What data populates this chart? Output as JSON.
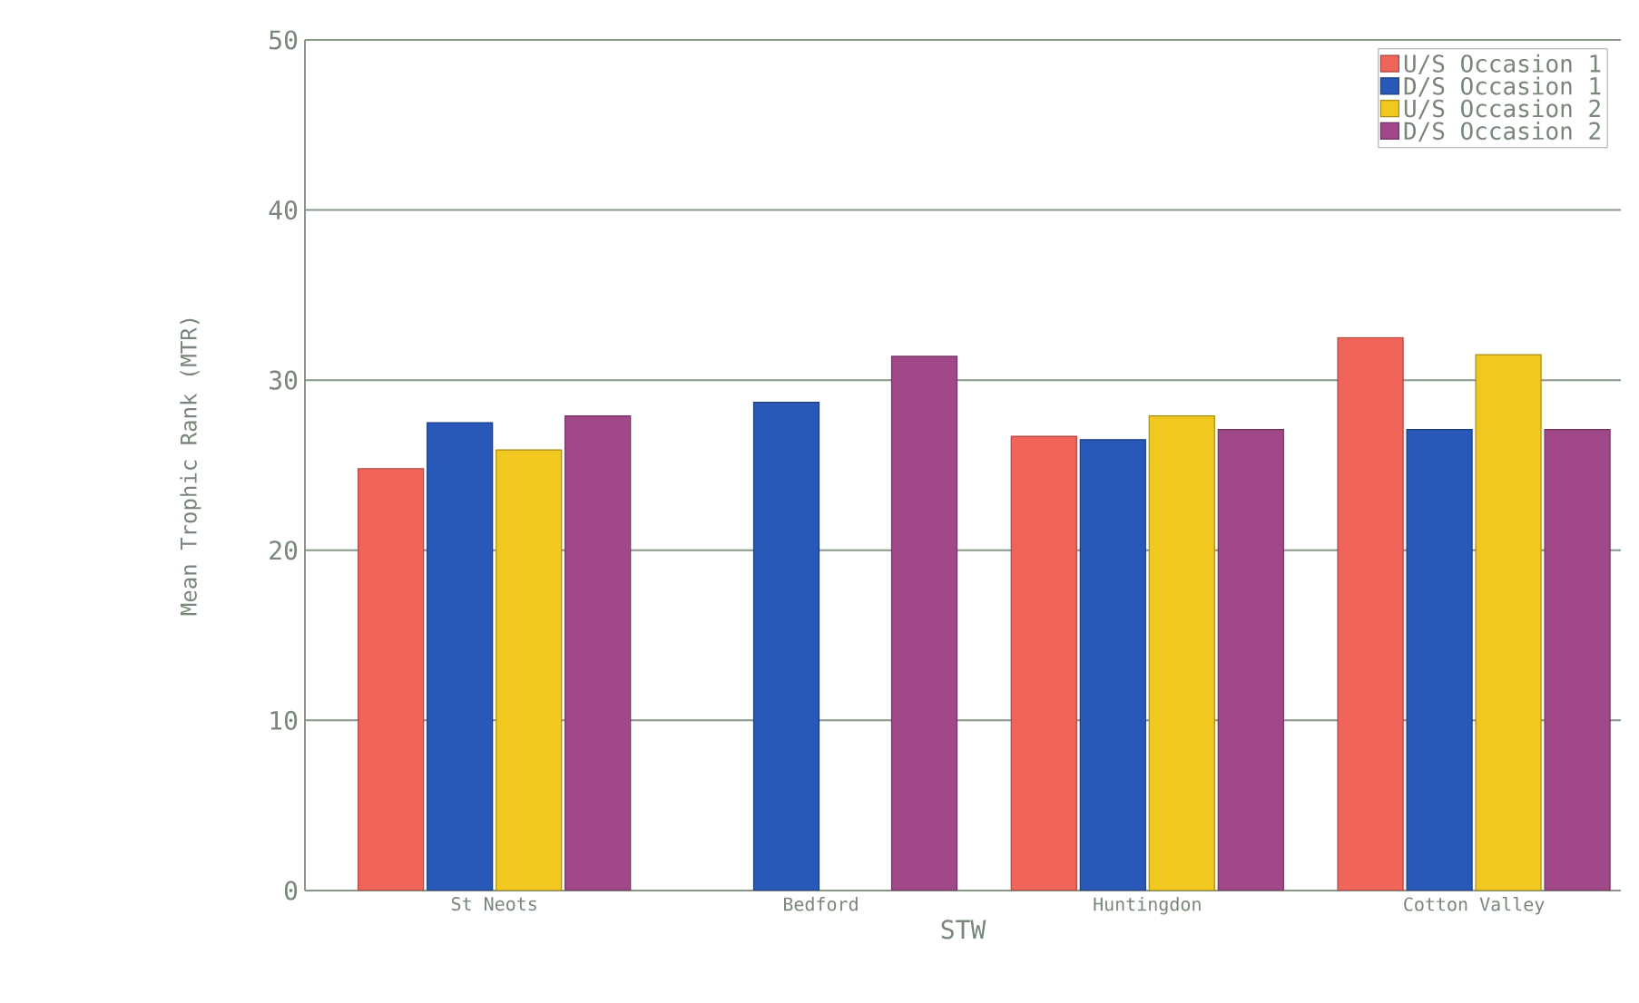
{
  "chart_data": {
    "type": "bar",
    "xlabel": "STW",
    "ylabel": "Mean Trophic Rank (MTR)",
    "categories": [
      "St Neots",
      "Bedford",
      "Huntingdon",
      "Cotton Valley"
    ],
    "series": [
      {
        "name": "U/S Occasion 1",
        "color": "#f0645a",
        "values": [
          24.8,
          null,
          26.7,
          32.5
        ]
      },
      {
        "name": "D/S Occasion 1",
        "color": "#2858b8",
        "values": [
          27.5,
          28.7,
          26.5,
          27.1
        ]
      },
      {
        "name": "U/S Occasion 2",
        "color": "#f0c820",
        "values": [
          25.9,
          null,
          27.9,
          31.5
        ]
      },
      {
        "name": "D/S Occasion 2",
        "color": "#a04888",
        "values": [
          27.9,
          31.4,
          27.1,
          27.1
        ]
      }
    ],
    "ylim": [
      0,
      50
    ],
    "yticks": [
      0,
      10,
      20,
      30,
      40,
      50
    ],
    "grid": "y",
    "legend": "top right"
  }
}
